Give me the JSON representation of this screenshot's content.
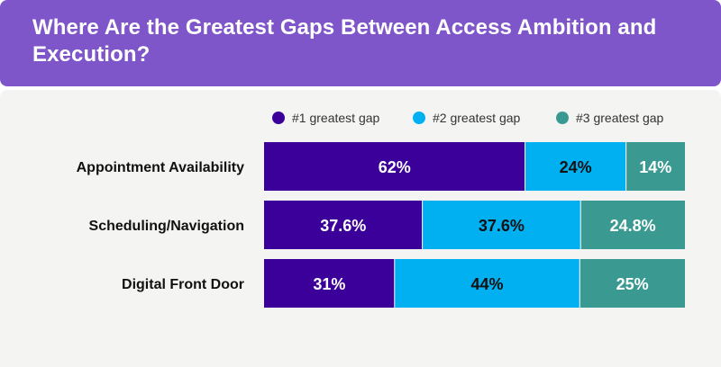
{
  "title": "Where Are the Greatest Gaps Between Access Ambition and Execution?",
  "chart_data": {
    "type": "bar",
    "orientation": "horizontal",
    "stacked": true,
    "categories": [
      "Appointment Availability",
      "Scheduling/Navigation",
      "Digital Front Door"
    ],
    "series": [
      {
        "name": "#1 greatest gap",
        "values": [
          62,
          37.6,
          31
        ],
        "labels": [
          "62%",
          "37.6%",
          "31%"
        ],
        "color": "#3b0099",
        "label_color": "#ffffff"
      },
      {
        "name": "#2 greatest gap",
        "values": [
          24,
          37.6,
          44
        ],
        "labels": [
          "24%",
          "37.6%",
          "44%"
        ],
        "color": "#00b0f0",
        "label_color": "#111111"
      },
      {
        "name": "#3 greatest gap",
        "values": [
          14,
          24.8,
          25
        ],
        "labels": [
          "14%",
          "24.8%",
          "25%"
        ],
        "color": "#3a9a92",
        "label_color": "#ffffff"
      }
    ],
    "legend_position": "top",
    "grid": false
  },
  "colors": {
    "header_bg": "#7f56c9",
    "panel_bg": "#f4f4f2"
  }
}
